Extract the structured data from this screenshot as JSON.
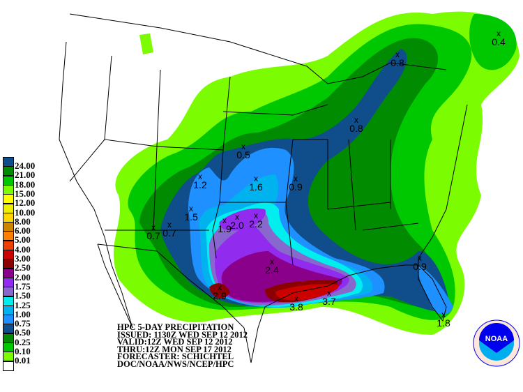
{
  "title_block": {
    "lines": [
      "HPC 5-DAY PRECIPITATION",
      "ISSUED: 1130Z WED SEP 12 2012",
      "VALID:12Z WED SEP 12 2012",
      "THRU:12Z MON SEP 17 2012",
      "FORECASTER: SCHICHTEL",
      "DOC/NOAA/NWS/NCEP/HPC"
    ]
  },
  "legend": [
    {
      "label": "24.00",
      "color": "#104E8B"
    },
    {
      "label": "21.00",
      "color": "#008B00"
    },
    {
      "label": "18.00",
      "color": "#00C800"
    },
    {
      "label": "15.00",
      "color": "#7CFC00"
    },
    {
      "label": "12.00",
      "color": "#FFFF00"
    },
    {
      "label": "10.00",
      "color": "#EEEE00"
    },
    {
      "label": "8.00",
      "color": "#FFD700"
    },
    {
      "label": "6.00",
      "color": "#CD8500"
    },
    {
      "label": "5.00",
      "color": "#FF7F00"
    },
    {
      "label": "4.00",
      "color": "#EE4000"
    },
    {
      "label": "3.00",
      "color": "#CD0000"
    },
    {
      "label": "2.50",
      "color": "#8B0000"
    },
    {
      "label": "2.00",
      "color": "#8B008B"
    },
    {
      "label": "1.75",
      "color": "#912CEE"
    },
    {
      "label": "1.50",
      "color": "#8968CD"
    },
    {
      "label": "1.25",
      "color": "#00EEEE"
    },
    {
      "label": "1.00",
      "color": "#00B2EE"
    },
    {
      "label": "0.75",
      "color": "#1E90FF"
    },
    {
      "label": "0.50",
      "color": "#104E8B"
    },
    {
      "label": "0.25",
      "color": "#008B00"
    },
    {
      "label": "0.10",
      "color": "#00C800"
    },
    {
      "label": "0.01",
      "color": "#7CFC00"
    },
    {
      "label": "",
      "color": "#FFFFFF"
    }
  ],
  "maxima": [
    "0.8",
    "0.8",
    "0.4",
    "0.5",
    "1.2",
    "1.6",
    "0.9",
    "1.5",
    "0.7",
    "0.7",
    "1.9",
    "2.0",
    "2.2",
    "2.4",
    "2.9",
    "3.8",
    "3.7",
    "0.9",
    "1.8"
  ],
  "logo": {
    "text": "NOAA",
    "colors": {
      "dark": "#0000EE",
      "light": "#00AEEF",
      "ring": "#FDE7DA"
    }
  }
}
